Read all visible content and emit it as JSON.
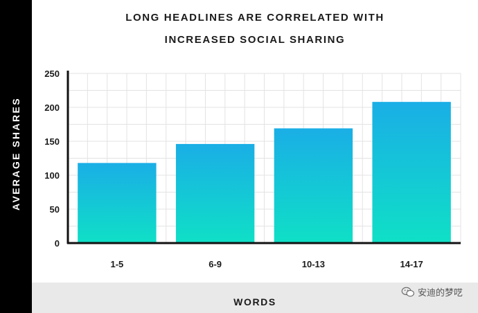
{
  "chart_data": {
    "type": "bar",
    "title": "LONG HEADLINES ARE CORRELATED WITH",
    "subtitle": "INCREASED SOCIAL SHARING",
    "xlabel": "WORDS",
    "ylabel": "AVERAGE SHARES",
    "categories": [
      "1-5",
      "6-9",
      "10-13",
      "14-17"
    ],
    "values": [
      118,
      146,
      169,
      208
    ],
    "ylim": [
      0,
      250
    ],
    "yticks": [
      "0",
      "50",
      "100",
      "150",
      "200",
      "250"
    ],
    "grid": true,
    "colors": {
      "bar_top": "#1aaee6",
      "bar_bottom": "#0fe0c6",
      "axis": "#111111",
      "grid": "#e3e3e3"
    }
  },
  "watermark": {
    "text": "安迪的梦呓",
    "icon": "wechat-icon"
  }
}
